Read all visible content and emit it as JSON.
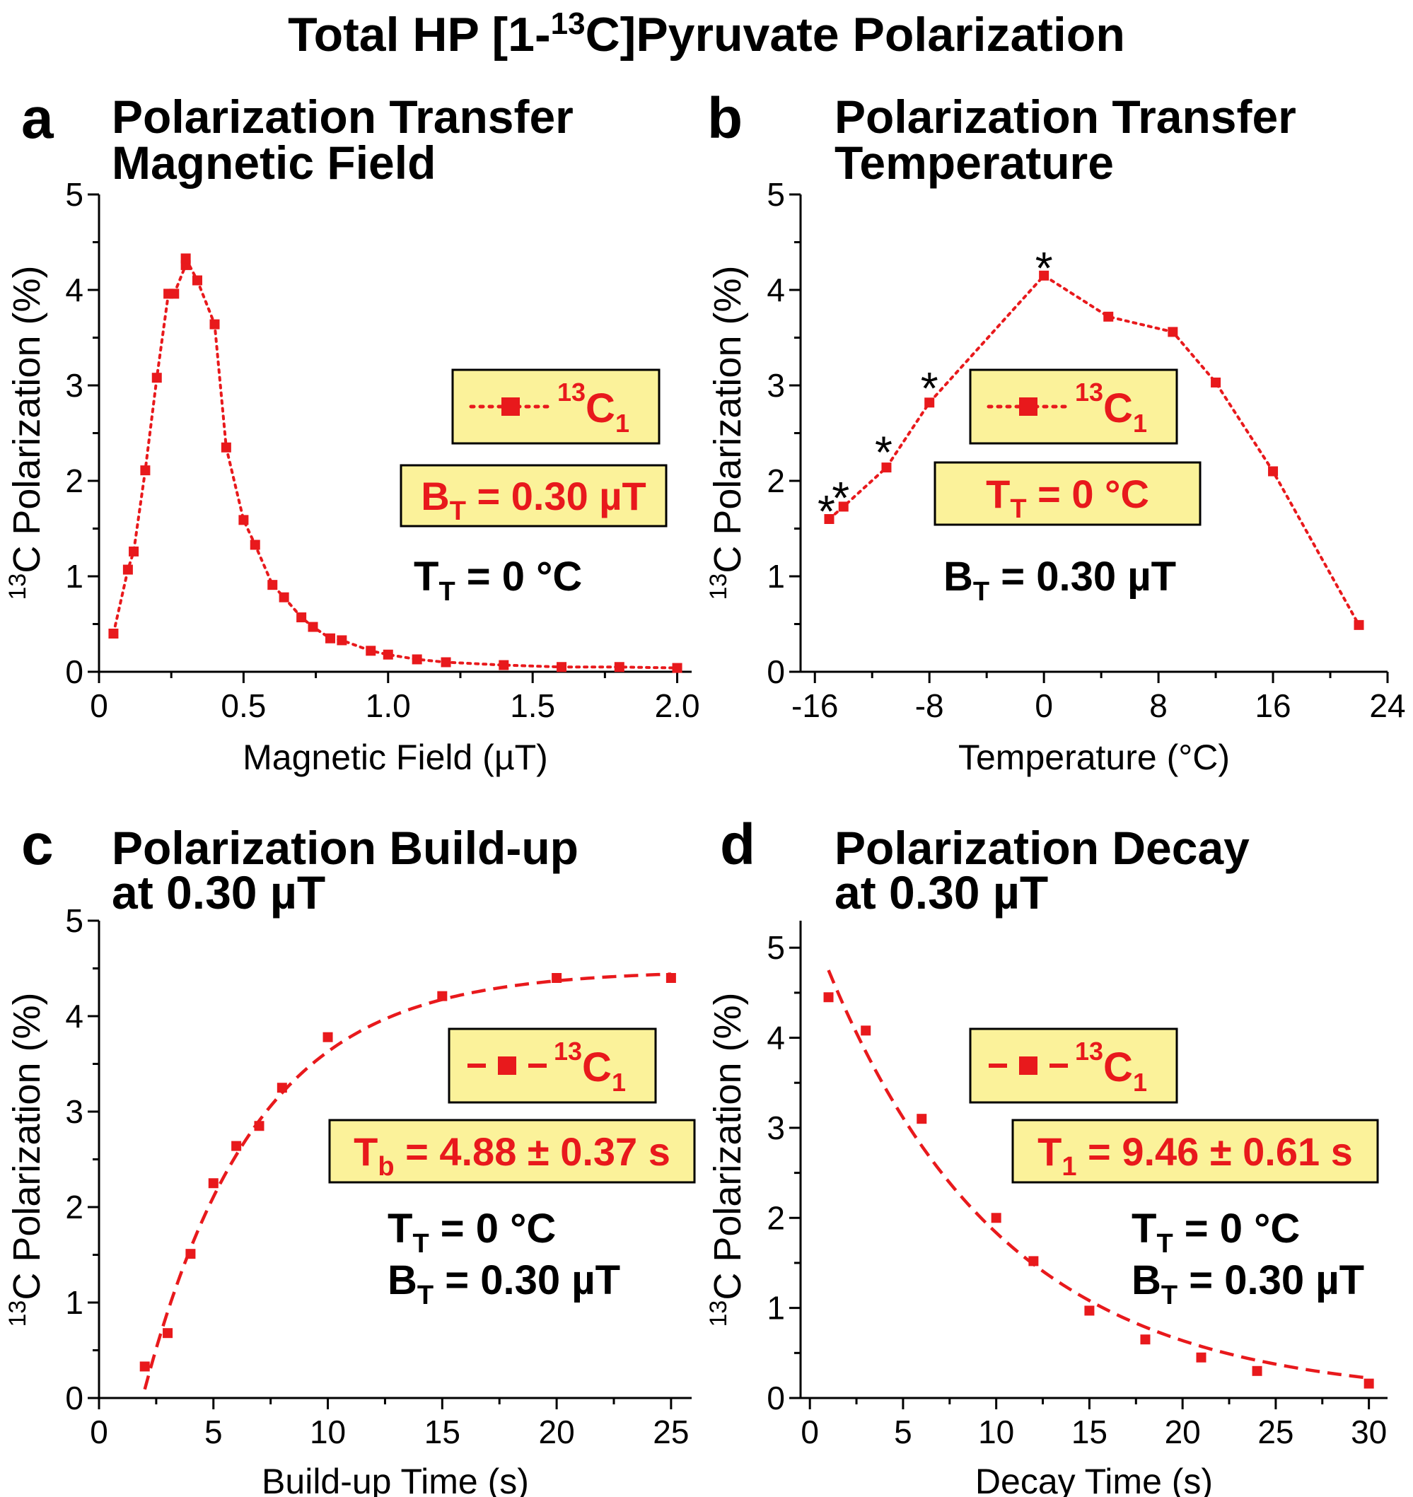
{
  "figure_title": {
    "pre": "Total HP [1-",
    "sup": "13",
    "post": "C]Pyruvate Polarization"
  },
  "colors": {
    "series": "#e8191c",
    "legend_bg": "#fbf29a",
    "ink": "#000000"
  },
  "panels": [
    {
      "letter": "a",
      "title_lines": [
        "Polarization Transfer",
        "Magnetic Field"
      ],
      "xlabel": "Magnetic Field (µT)",
      "ylabel": {
        "sup": "13",
        "text": "C Polarization (%)"
      },
      "xtick_labels": [
        "0",
        "0.5",
        "1.0",
        "1.5",
        "2.0"
      ],
      "ytick_labels": [
        "0",
        "1",
        "2",
        "3",
        "4",
        "5"
      ],
      "legend": {
        "line_style": "dotted",
        "sup": "13",
        "main": "C",
        "sub": "1"
      },
      "boxed_param": {
        "main": "B",
        "sub": "T",
        "rest": " = 0.30 µT"
      },
      "params": [
        {
          "main": "T",
          "sub": "T",
          "rest": " = 0 °C"
        }
      ]
    },
    {
      "letter": "b",
      "title_lines": [
        "Polarization Transfer",
        "Temperature"
      ],
      "xlabel": "Temperature (°C)",
      "ylabel": {
        "sup": "13",
        "text": "C Polarization (%)"
      },
      "xtick_labels": [
        "-16",
        "-8",
        "0",
        "8",
        "16",
        "24"
      ],
      "ytick_labels": [
        "0",
        "1",
        "2",
        "3",
        "4",
        "5"
      ],
      "legend": {
        "line_style": "dotted",
        "sup": "13",
        "main": "C",
        "sub": "1"
      },
      "boxed_param": {
        "main": "T",
        "sub": "T",
        "rest": " = 0 °C"
      },
      "params": [
        {
          "main": "B",
          "sub": "T",
          "rest": " = 0.30 µT"
        }
      ],
      "asterisk": "*"
    },
    {
      "letter": "c",
      "title_lines": [
        "Polarization Build-up",
        "at 0.30 µT"
      ],
      "xlabel": "Build-up Time (s)",
      "ylabel": {
        "sup": "13",
        "text": "C Polarization (%)"
      },
      "xtick_labels": [
        "0",
        "5",
        "10",
        "15",
        "20",
        "25"
      ],
      "ytick_labels": [
        "0",
        "1",
        "2",
        "3",
        "4",
        "5"
      ],
      "legend": {
        "line_style": "dashed",
        "sup": "13",
        "main": "C",
        "sub": "1"
      },
      "boxed_param": {
        "main": "T",
        "sub": "b",
        "rest": " = 4.88 ± 0.37 s"
      },
      "params": [
        {
          "main": "T",
          "sub": "T",
          "rest": " = 0 °C"
        },
        {
          "main": "B",
          "sub": "T",
          "rest": " = 0.30 µT"
        }
      ]
    },
    {
      "letter": "d",
      "title_lines": [
        "Polarization Decay",
        "at 0.30 µT"
      ],
      "xlabel": "Decay Time (s)",
      "ylabel": {
        "sup": "13",
        "text": "C Polarization (%)"
      },
      "xtick_labels": [
        "0",
        "5",
        "10",
        "15",
        "20",
        "25",
        "30"
      ],
      "ytick_labels": [
        "0",
        "1",
        "2",
        "3",
        "4",
        "5"
      ],
      "legend": {
        "line_style": "dashed",
        "sup": "13",
        "main": "C",
        "sub": "1"
      },
      "boxed_param": {
        "main": "T",
        "sub": "1",
        "rest": " = 9.46 ± 0.61 s"
      },
      "params": [
        {
          "main": "T",
          "sub": "T",
          "rest": " = 0 °C"
        },
        {
          "main": "B",
          "sub": "T",
          "rest": " = 0.30 µT"
        }
      ]
    }
  ],
  "chart_data": [
    {
      "panel": "a",
      "type": "line",
      "title": "Polarization Transfer Magnetic Field",
      "xlabel": "Magnetic Field (µT)",
      "ylabel": "13C Polarization (%)",
      "xlim": [
        0,
        2.05
      ],
      "ylim": [
        0,
        5
      ],
      "xticks": [
        0,
        0.5,
        1.0,
        1.5,
        2.0
      ],
      "yticks": [
        0,
        1,
        2,
        3,
        4,
        5
      ],
      "series": [
        {
          "name": "13C1",
          "line": "dotted",
          "marker": "square",
          "x": [
            0.05,
            0.1,
            0.12,
            0.16,
            0.2,
            0.24,
            0.26,
            0.3,
            0.3,
            0.34,
            0.4,
            0.44,
            0.5,
            0.54,
            0.6,
            0.64,
            0.7,
            0.74,
            0.8,
            0.84,
            0.94,
            1.0,
            1.1,
            1.2,
            1.4,
            1.6,
            1.8,
            2.0
          ],
          "y": [
            0.4,
            1.07,
            1.26,
            2.11,
            3.08,
            3.96,
            3.96,
            4.26,
            4.33,
            4.1,
            3.64,
            2.35,
            1.59,
            1.33,
            0.91,
            0.78,
            0.57,
            0.47,
            0.35,
            0.33,
            0.22,
            0.18,
            0.13,
            0.1,
            0.07,
            0.05,
            0.05,
            0.04
          ]
        }
      ]
    },
    {
      "panel": "b",
      "type": "line",
      "title": "Polarization Transfer Temperature",
      "xlabel": "Temperature (°C)",
      "ylabel": "13C Polarization (%)",
      "xlim": [
        -17,
        24
      ],
      "ylim": [
        0,
        5
      ],
      "xticks": [
        -16,
        -8,
        0,
        8,
        16,
        24
      ],
      "yticks": [
        0,
        1,
        2,
        3,
        4,
        5
      ],
      "series": [
        {
          "name": "13C1",
          "line": "dotted",
          "marker": "square",
          "x": [
            -15,
            -14,
            -11,
            -8,
            0,
            4.5,
            9,
            12,
            16,
            22
          ],
          "y": [
            1.6,
            1.73,
            2.14,
            2.82,
            4.15,
            3.72,
            3.56,
            3.03,
            2.1,
            0.49
          ]
        }
      ],
      "annotations": [
        {
          "text": "*",
          "x": -15.2,
          "y": 1.74
        },
        {
          "text": "*",
          "x": -14.2,
          "y": 1.88
        },
        {
          "text": "*",
          "x": -11.2,
          "y": 2.36
        },
        {
          "text": "*",
          "x": -8.0,
          "y": 3.03
        },
        {
          "text": "*",
          "x": 0.0,
          "y": 4.29
        }
      ]
    },
    {
      "panel": "c",
      "type": "scatter",
      "title": "Polarization Build-up at 0.30 µT",
      "xlabel": "Build-up Time (s)",
      "ylabel": "13C Polarization (%)",
      "xlim": [
        0,
        25.9
      ],
      "ylim": [
        0,
        5
      ],
      "xticks": [
        0,
        5,
        10,
        15,
        20,
        25
      ],
      "yticks": [
        0,
        1,
        2,
        3,
        4,
        5
      ],
      "series": [
        {
          "name": "13C1",
          "marker": "square",
          "x": [
            2,
            3,
            4,
            5,
            6,
            7,
            8,
            10,
            15,
            20,
            25
          ],
          "y": [
            0.33,
            0.68,
            1.51,
            2.25,
            2.64,
            2.85,
            3.25,
            3.78,
            4.21,
            4.4,
            4.4
          ]
        }
      ],
      "fit": {
        "name": "exponential build-up fit",
        "line": "dashed",
        "model": "A*(1-exp(-(t-t0)/Tb))",
        "A": 4.48,
        "t0": 1.9,
        "Tb": 4.88,
        "x_range": [
          2,
          25
        ]
      }
    },
    {
      "panel": "d",
      "type": "scatter",
      "title": "Polarization Decay at 0.30 µT",
      "xlabel": "Decay Time (s)",
      "ylabel": "13C Polarization (%)",
      "xlim": [
        -0.5,
        31
      ],
      "ylim": [
        0,
        5.3
      ],
      "xticks": [
        0,
        5,
        10,
        15,
        20,
        25,
        30
      ],
      "yticks": [
        0,
        1,
        2,
        3,
        4,
        5
      ],
      "series": [
        {
          "name": "13C1",
          "marker": "square",
          "x": [
            1,
            3,
            6,
            10,
            12,
            15,
            18,
            21,
            24,
            30
          ],
          "y": [
            4.45,
            4.08,
            3.1,
            2.0,
            1.52,
            0.97,
            0.65,
            0.45,
            0.3,
            0.16
          ]
        }
      ],
      "fit": {
        "name": "exponential decay fit",
        "line": "dashed",
        "model": "A*exp(-t/T1)",
        "A": 5.28,
        "T1": 9.46,
        "x_range": [
          1,
          30
        ]
      }
    }
  ]
}
